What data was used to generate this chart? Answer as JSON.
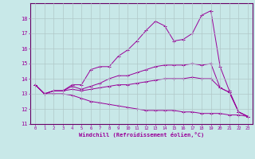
{
  "title": "",
  "xlabel": "Windchill (Refroidissement éolien,°C)",
  "ylabel": "",
  "bg_color": "#c8e8e8",
  "grid_color": "#b0c8c8",
  "line_color": "#990099",
  "spine_color": "#660066",
  "xlim": [
    -0.5,
    23.5
  ],
  "ylim": [
    11,
    19
  ],
  "yticks": [
    11,
    12,
    13,
    14,
    15,
    16,
    17,
    18
  ],
  "xticks": [
    0,
    1,
    2,
    3,
    4,
    5,
    6,
    7,
    8,
    9,
    10,
    11,
    12,
    13,
    14,
    15,
    16,
    17,
    18,
    19,
    20,
    21,
    22,
    23
  ],
  "curves": [
    {
      "x": [
        0,
        1,
        2,
        3,
        4,
        5,
        6,
        7,
        8,
        9,
        10,
        11,
        12,
        13,
        14,
        15,
        16,
        17,
        18,
        19,
        20,
        21,
        22,
        23
      ],
      "y": [
        13.6,
        13.0,
        13.2,
        13.2,
        13.6,
        13.6,
        14.6,
        14.8,
        14.8,
        15.5,
        15.9,
        16.5,
        17.2,
        17.8,
        17.5,
        16.5,
        16.6,
        17.0,
        18.2,
        18.5,
        14.8,
        13.2,
        11.8,
        11.5
      ]
    },
    {
      "x": [
        0,
        1,
        2,
        3,
        4,
        5,
        6,
        7,
        8,
        9,
        10,
        11,
        12,
        13,
        14,
        15,
        16,
        17,
        18,
        19,
        20,
        21,
        22,
        23
      ],
      "y": [
        13.6,
        13.0,
        13.2,
        13.2,
        13.5,
        13.3,
        13.5,
        13.7,
        14.0,
        14.2,
        14.2,
        14.4,
        14.6,
        14.8,
        14.9,
        14.9,
        14.9,
        15.0,
        14.9,
        15.0,
        13.4,
        13.1,
        11.8,
        11.5
      ]
    },
    {
      "x": [
        0,
        1,
        2,
        3,
        4,
        5,
        6,
        7,
        8,
        9,
        10,
        11,
        12,
        13,
        14,
        15,
        16,
        17,
        18,
        19,
        20,
        21,
        22,
        23
      ],
      "y": [
        13.6,
        13.0,
        13.2,
        13.2,
        13.3,
        13.2,
        13.3,
        13.4,
        13.5,
        13.6,
        13.6,
        13.7,
        13.8,
        13.9,
        14.0,
        14.0,
        14.0,
        14.1,
        14.0,
        14.0,
        13.4,
        13.1,
        11.8,
        11.5
      ]
    },
    {
      "x": [
        0,
        1,
        2,
        3,
        4,
        5,
        6,
        7,
        8,
        9,
        10,
        11,
        12,
        13,
        14,
        15,
        16,
        17,
        18,
        19,
        20,
        21,
        22,
        23
      ],
      "y": [
        13.6,
        13.0,
        13.0,
        13.0,
        12.9,
        12.7,
        12.5,
        12.4,
        12.3,
        12.2,
        12.1,
        12.0,
        11.9,
        11.9,
        11.9,
        11.9,
        11.8,
        11.8,
        11.7,
        11.7,
        11.7,
        11.6,
        11.6,
        11.5
      ]
    }
  ]
}
